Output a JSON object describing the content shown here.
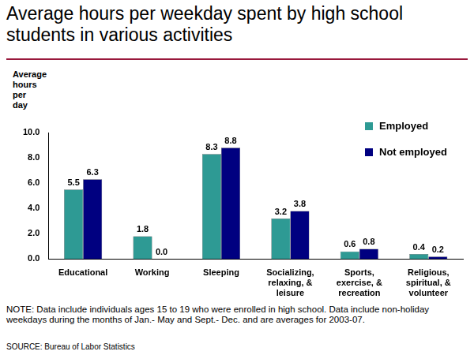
{
  "chart_data": {
    "type": "bar",
    "title": "Average hours per weekday spent by high school students in various activities",
    "y_label": "Average hours per day",
    "categories": [
      "Educational",
      "Working",
      "Sleeping",
      "Socializing, relaxing, & leisure",
      "Sports, exercise, & recreation",
      "Religious, spiritual, & volunteer"
    ],
    "series": [
      {
        "name": "Employed",
        "color": "#2e9a94",
        "values": [
          5.5,
          1.8,
          8.3,
          3.2,
          0.6,
          0.4
        ],
        "value_labels": [
          "5.5",
          "1.8",
          "8.3",
          "3.2",
          "0.6",
          "0.4"
        ]
      },
      {
        "name": "Not employed",
        "color": "#000080",
        "values": [
          6.3,
          0.0,
          8.8,
          3.8,
          0.8,
          0.2
        ],
        "value_labels": [
          "6.3",
          "0.0",
          "8.8",
          "3.8",
          "0.8",
          "0.2"
        ]
      }
    ],
    "ylim": [
      0,
      10
    ],
    "yticks": [
      {
        "value": 0,
        "label": "0.0"
      },
      {
        "value": 2,
        "label": "2.0"
      },
      {
        "value": 4,
        "label": "4.0"
      },
      {
        "value": 6,
        "label": "6.0"
      },
      {
        "value": 8,
        "label": "8.0"
      },
      {
        "value": 10,
        "label": "10.0"
      }
    ],
    "grid": false,
    "legend": "upper right",
    "data_labels": true,
    "note": "NOTE: Data include individuals ages 15 to 19 who were enrolled in high school. Data include non-holiday weekdays during the months of Jan.- May and Sept.- Dec. and are averages for 2003-07.",
    "source": "SOURCE: Bureau of Labor Statistics"
  }
}
